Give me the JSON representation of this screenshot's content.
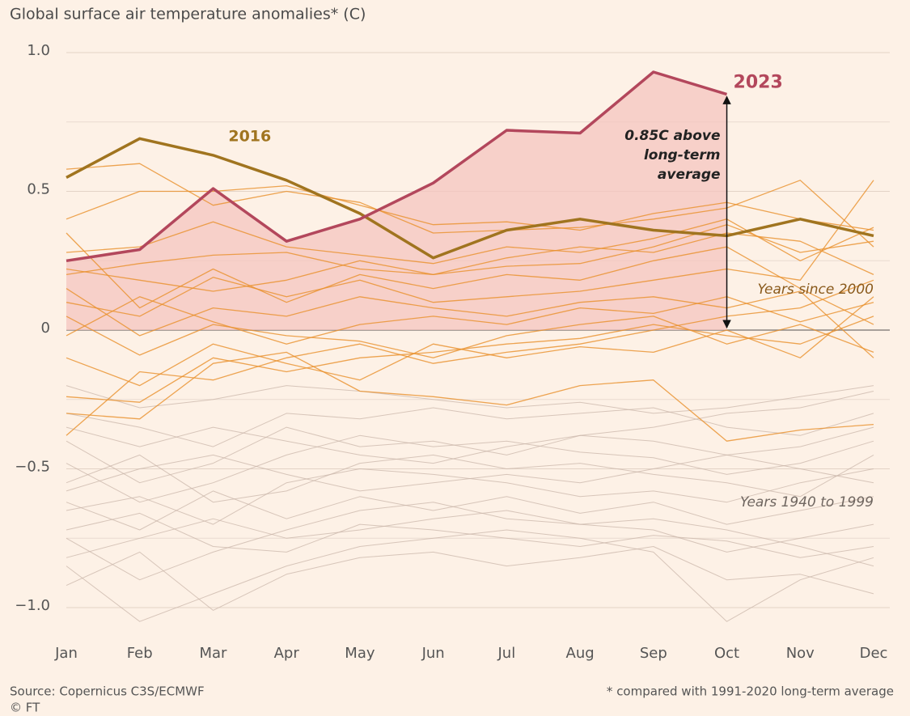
{
  "chart_data": {
    "type": "line",
    "title": "Global surface air temperature anomalies* (C)",
    "categories": [
      "Jan",
      "Feb",
      "Mar",
      "Apr",
      "May",
      "Jun",
      "Jul",
      "Aug",
      "Sep",
      "Oct",
      "Nov",
      "Dec"
    ],
    "ylim": [
      -1.07,
      1.0
    ],
    "yticks": [
      {
        "value": 1,
        "label": "1.0"
      },
      0.5,
      0,
      {
        "value": -0.5,
        "label": "−0.5"
      },
      {
        "value": -1,
        "label": "−1.0"
      }
    ],
    "minor_yticks": [
      0.75,
      0.25,
      -0.25,
      -0.75
    ],
    "grid": true,
    "series": [
      {
        "name": "2023",
        "color": "#b3475c",
        "fill": "#f4c4bf",
        "values": [
          0.25,
          0.29,
          0.51,
          0.32,
          0.4,
          0.53,
          0.72,
          0.71,
          0.93,
          0.85,
          null,
          null
        ]
      },
      {
        "name": "2016",
        "color": "#a0741f",
        "values": [
          0.55,
          0.69,
          0.63,
          0.54,
          0.42,
          0.26,
          0.36,
          0.4,
          0.36,
          0.34,
          0.4,
          0.34
        ]
      }
    ],
    "annotation": {
      "lines": [
        "0.85C above",
        "long-term",
        "average"
      ]
    },
    "groups": [
      {
        "label": "Years 1940 to 1999",
        "color": "#c9b6a9",
        "text_color": "#6f6660",
        "series": [
          [
            -0.4,
            -0.55,
            -0.48,
            -0.35,
            -0.42,
            -0.4,
            -0.45,
            -0.38,
            -0.35,
            -0.3,
            -0.28,
            -0.22
          ],
          [
            -0.65,
            -0.6,
            -0.7,
            -0.55,
            -0.5,
            -0.52,
            -0.55,
            -0.6,
            -0.58,
            -0.62,
            -0.55,
            -0.5
          ],
          [
            -0.75,
            -0.9,
            -0.8,
            -0.72,
            -0.65,
            -0.62,
            -0.68,
            -0.7,
            -0.72,
            -0.8,
            -0.75,
            -0.7
          ],
          [
            -0.85,
            -1.05,
            -0.95,
            -0.85,
            -0.78,
            -0.75,
            -0.72,
            -0.75,
            -0.8,
            -1.05,
            -0.9,
            -0.82
          ],
          [
            -0.55,
            -0.45,
            -0.62,
            -0.58,
            -0.48,
            -0.45,
            -0.5,
            -0.48,
            -0.52,
            -0.55,
            -0.6,
            -0.45
          ],
          [
            -0.3,
            -0.35,
            -0.42,
            -0.3,
            -0.32,
            -0.28,
            -0.32,
            -0.3,
            -0.28,
            -0.35,
            -0.38,
            -0.3
          ],
          [
            -0.92,
            -0.8,
            -1.01,
            -0.88,
            -0.82,
            -0.8,
            -0.85,
            -0.82,
            -0.78,
            -0.9,
            -0.88,
            -0.95
          ],
          [
            -0.62,
            -0.72,
            -0.58,
            -0.68,
            -0.6,
            -0.65,
            -0.6,
            -0.66,
            -0.62,
            -0.7,
            -0.65,
            -0.6
          ],
          [
            -0.48,
            -0.62,
            -0.55,
            -0.45,
            -0.38,
            -0.42,
            -0.4,
            -0.44,
            -0.46,
            -0.52,
            -0.48,
            -0.4
          ],
          [
            -0.72,
            -0.66,
            -0.78,
            -0.8,
            -0.7,
            -0.72,
            -0.75,
            -0.78,
            -0.74,
            -0.76,
            -0.82,
            -0.78
          ],
          [
            -0.2,
            -0.28,
            -0.25,
            -0.2,
            -0.22,
            -0.25,
            -0.28,
            -0.26,
            -0.3,
            -0.28,
            -0.24,
            -0.2
          ],
          [
            -0.58,
            -0.5,
            -0.45,
            -0.52,
            -0.58,
            -0.55,
            -0.52,
            -0.55,
            -0.5,
            -0.45,
            -0.5,
            -0.55
          ],
          [
            -0.82,
            -0.75,
            -0.68,
            -0.75,
            -0.72,
            -0.68,
            -0.65,
            -0.7,
            -0.68,
            -0.72,
            -0.78,
            -0.85
          ],
          [
            -0.35,
            -0.42,
            -0.35,
            -0.4,
            -0.45,
            -0.48,
            -0.42,
            -0.38,
            -0.4,
            -0.45,
            -0.42,
            -0.35
          ]
        ]
      },
      {
        "label": "Years since 2000",
        "color": "#e8902a",
        "text_color": "#8a5a1c",
        "series": [
          [
            0.58,
            0.6,
            0.45,
            0.5,
            0.46,
            0.35,
            0.36,
            0.37,
            0.4,
            0.44,
            0.54,
            0.3
          ],
          [
            0.4,
            0.5,
            0.5,
            0.52,
            0.45,
            0.38,
            0.39,
            0.36,
            0.42,
            0.46,
            0.4,
            0.36
          ],
          [
            0.28,
            0.3,
            0.39,
            0.3,
            0.27,
            0.24,
            0.3,
            0.28,
            0.33,
            0.4,
            0.25,
            0.37
          ],
          [
            0.2,
            0.24,
            0.27,
            0.28,
            0.22,
            0.2,
            0.26,
            0.3,
            0.28,
            0.35,
            0.32,
            0.2
          ],
          [
            0.1,
            0.05,
            0.19,
            0.12,
            0.18,
            0.1,
            0.12,
            0.14,
            0.18,
            0.22,
            0.18,
            0.54
          ],
          [
            0.15,
            -0.02,
            0.08,
            0.05,
            0.12,
            0.08,
            0.05,
            0.1,
            0.12,
            0.08,
            0.14,
            -0.1
          ],
          [
            -0.02,
            0.12,
            0.03,
            -0.05,
            0.02,
            0.05,
            0.02,
            0.08,
            0.06,
            0.12,
            0.03,
            0.1
          ],
          [
            -0.24,
            -0.26,
            -0.1,
            -0.15,
            -0.1,
            -0.08,
            -0.05,
            -0.03,
            0.02,
            -0.02,
            -0.05,
            0.05
          ],
          [
            -0.3,
            -0.32,
            -0.12,
            -0.08,
            -0.22,
            -0.24,
            -0.27,
            -0.2,
            -0.18,
            -0.4,
            -0.36,
            -0.34
          ],
          [
            -0.38,
            -0.15,
            -0.18,
            -0.1,
            -0.05,
            -0.12,
            -0.08,
            -0.05,
            0.0,
            0.05,
            0.08,
            0.18
          ],
          [
            0.35,
            0.08,
            0.22,
            0.1,
            0.2,
            0.15,
            0.2,
            0.18,
            0.25,
            0.3,
            0.15,
            0.02
          ],
          [
            0.05,
            -0.09,
            0.02,
            -0.02,
            -0.04,
            -0.1,
            -0.02,
            0.02,
            0.05,
            -0.05,
            0.02,
            -0.08
          ],
          [
            -0.1,
            -0.2,
            -0.05,
            -0.12,
            -0.18,
            -0.05,
            -0.1,
            -0.06,
            -0.08,
            0.0,
            -0.1,
            0.12
          ],
          [
            0.22,
            0.18,
            0.14,
            0.18,
            0.25,
            0.2,
            0.23,
            0.24,
            0.3,
            0.38,
            0.28,
            0.32
          ]
        ]
      }
    ],
    "source": "Source: Copernicus C3S/ECMWF",
    "copyright": "© FT",
    "note": "* compared with 1991-2020 long-term average"
  }
}
